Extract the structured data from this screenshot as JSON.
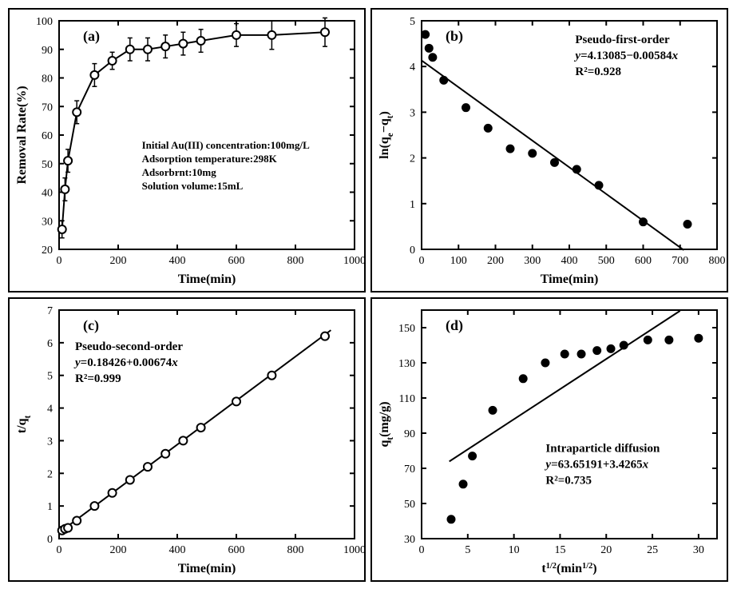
{
  "figure": {
    "background_color": "#ffffff",
    "panel_border_color": "#000000",
    "line_color": "#000000",
    "marker_stroke": "#000000",
    "marker_fill_open": "#ffffff",
    "marker_fill_solid": "#000000",
    "font_family": "Times New Roman",
    "panels": [
      "a",
      "b",
      "c",
      "d"
    ]
  },
  "a": {
    "type": "line-scatter-errorbars",
    "panel_label": "(a)",
    "panel_label_fontsize": 18,
    "xlabel": "Time(min)",
    "ylabel": "Removal Rate(%)",
    "label_fontsize": 16,
    "tick_fontsize": 14,
    "xlim": [
      0,
      1000
    ],
    "ylim": [
      20,
      100
    ],
    "xtick_step": 200,
    "ytick_step": 10,
    "marker_style": "open-circle",
    "marker_size": 5,
    "line_width": 2,
    "error_cap_width": 6,
    "points": [
      {
        "x": 10,
        "y": 27,
        "err": 3
      },
      {
        "x": 20,
        "y": 41,
        "err": 4
      },
      {
        "x": 30,
        "y": 51,
        "err": 4
      },
      {
        "x": 60,
        "y": 68,
        "err": 4
      },
      {
        "x": 120,
        "y": 81,
        "err": 4
      },
      {
        "x": 180,
        "y": 86,
        "err": 3
      },
      {
        "x": 240,
        "y": 90,
        "err": 4
      },
      {
        "x": 300,
        "y": 90,
        "err": 4
      },
      {
        "x": 360,
        "y": 91,
        "err": 4
      },
      {
        "x": 420,
        "y": 92,
        "err": 4
      },
      {
        "x": 480,
        "y": 93,
        "err": 4
      },
      {
        "x": 600,
        "y": 95,
        "err": 4
      },
      {
        "x": 720,
        "y": 95,
        "err": 5
      },
      {
        "x": 900,
        "y": 96,
        "err": 5
      }
    ],
    "annotations": [
      "Initial Au(III) concentration:100mg/L",
      "Adsorption temperature:298K",
      "Adsorbrnt:10mg",
      "Solution volume:15mL"
    ],
    "annotation_fontsize": 13
  },
  "b": {
    "type": "scatter-fit",
    "panel_label": "(b)",
    "panel_label_fontsize": 18,
    "xlabel": "Time(min)",
    "ylabel": "ln(qₑ−qₜ)",
    "label_fontsize": 16,
    "tick_fontsize": 14,
    "xlim": [
      0,
      800
    ],
    "ylim": [
      0,
      5
    ],
    "xtick_step": 100,
    "ytick_step": 1,
    "marker_style": "solid-circle",
    "marker_size": 5,
    "points": [
      {
        "x": 10,
        "y": 4.7
      },
      {
        "x": 20,
        "y": 4.4
      },
      {
        "x": 30,
        "y": 4.2
      },
      {
        "x": 60,
        "y": 3.7
      },
      {
        "x": 120,
        "y": 3.1
      },
      {
        "x": 180,
        "y": 2.65
      },
      {
        "x": 240,
        "y": 2.2
      },
      {
        "x": 300,
        "y": 2.1
      },
      {
        "x": 360,
        "y": 1.9
      },
      {
        "x": 420,
        "y": 1.75
      },
      {
        "x": 480,
        "y": 1.4
      },
      {
        "x": 600,
        "y": 0.6
      },
      {
        "x": 720,
        "y": 0.55
      }
    ],
    "fit": {
      "intercept": 4.13085,
      "slope": -0.00584
    },
    "fit_line_x": [
      0,
      710
    ],
    "title_lines": [
      "Pseudo-first-order",
      "y=4.13085−0.00584x",
      "R²=0.928"
    ],
    "title_fontsize": 15
  },
  "c": {
    "type": "scatter-fit",
    "panel_label": "(c)",
    "panel_label_fontsize": 18,
    "xlabel": "Time(min)",
    "ylabel": "t/qₜ",
    "label_fontsize": 16,
    "tick_fontsize": 14,
    "xlim": [
      0,
      1000
    ],
    "ylim": [
      0,
      7
    ],
    "xtick_step": 200,
    "ytick_step": 1,
    "marker_style": "open-circle",
    "marker_size": 5,
    "points": [
      {
        "x": 10,
        "y": 0.25
      },
      {
        "x": 20,
        "y": 0.3
      },
      {
        "x": 30,
        "y": 0.33
      },
      {
        "x": 60,
        "y": 0.55
      },
      {
        "x": 120,
        "y": 1.0
      },
      {
        "x": 180,
        "y": 1.4
      },
      {
        "x": 240,
        "y": 1.8
      },
      {
        "x": 300,
        "y": 2.2
      },
      {
        "x": 360,
        "y": 2.6
      },
      {
        "x": 420,
        "y": 3.0
      },
      {
        "x": 480,
        "y": 3.4
      },
      {
        "x": 600,
        "y": 4.2
      },
      {
        "x": 720,
        "y": 5.0
      },
      {
        "x": 900,
        "y": 6.2
      }
    ],
    "fit": {
      "intercept": 0.18426,
      "slope": 0.00674
    },
    "fit_line_x": [
      0,
      920
    ],
    "title_lines": [
      "Pseudo-second-order",
      "y=0.18426+0.00674x",
      "R²=0.999"
    ],
    "title_fontsize": 15
  },
  "d": {
    "type": "scatter-fit",
    "panel_label": "(d)",
    "panel_label_fontsize": 18,
    "xlabel": "t^{1/2}(min^{1/2})",
    "ylabel": "qₜ(mg/g)",
    "label_fontsize": 16,
    "tick_fontsize": 14,
    "xlim": [
      0,
      32
    ],
    "ylim": [
      30,
      160
    ],
    "xtick_step": 5,
    "ytick_step": 20,
    "marker_style": "solid-circle",
    "marker_size": 5,
    "points": [
      {
        "x": 3.2,
        "y": 41
      },
      {
        "x": 4.5,
        "y": 61
      },
      {
        "x": 5.5,
        "y": 77
      },
      {
        "x": 7.7,
        "y": 103
      },
      {
        "x": 11.0,
        "y": 121
      },
      {
        "x": 13.4,
        "y": 130
      },
      {
        "x": 15.5,
        "y": 135
      },
      {
        "x": 17.3,
        "y": 135
      },
      {
        "x": 19.0,
        "y": 137
      },
      {
        "x": 20.5,
        "y": 138
      },
      {
        "x": 21.9,
        "y": 140
      },
      {
        "x": 24.5,
        "y": 143
      },
      {
        "x": 26.8,
        "y": 143
      },
      {
        "x": 30.0,
        "y": 144
      }
    ],
    "fit": {
      "intercept": 63.65191,
      "slope": 3.4265
    },
    "fit_line_x": [
      3,
      28
    ],
    "title_lines": [
      "Intraparticle diffusion",
      "y=63.65191+3.4265x",
      "R²=0.735"
    ],
    "title_fontsize": 15
  }
}
